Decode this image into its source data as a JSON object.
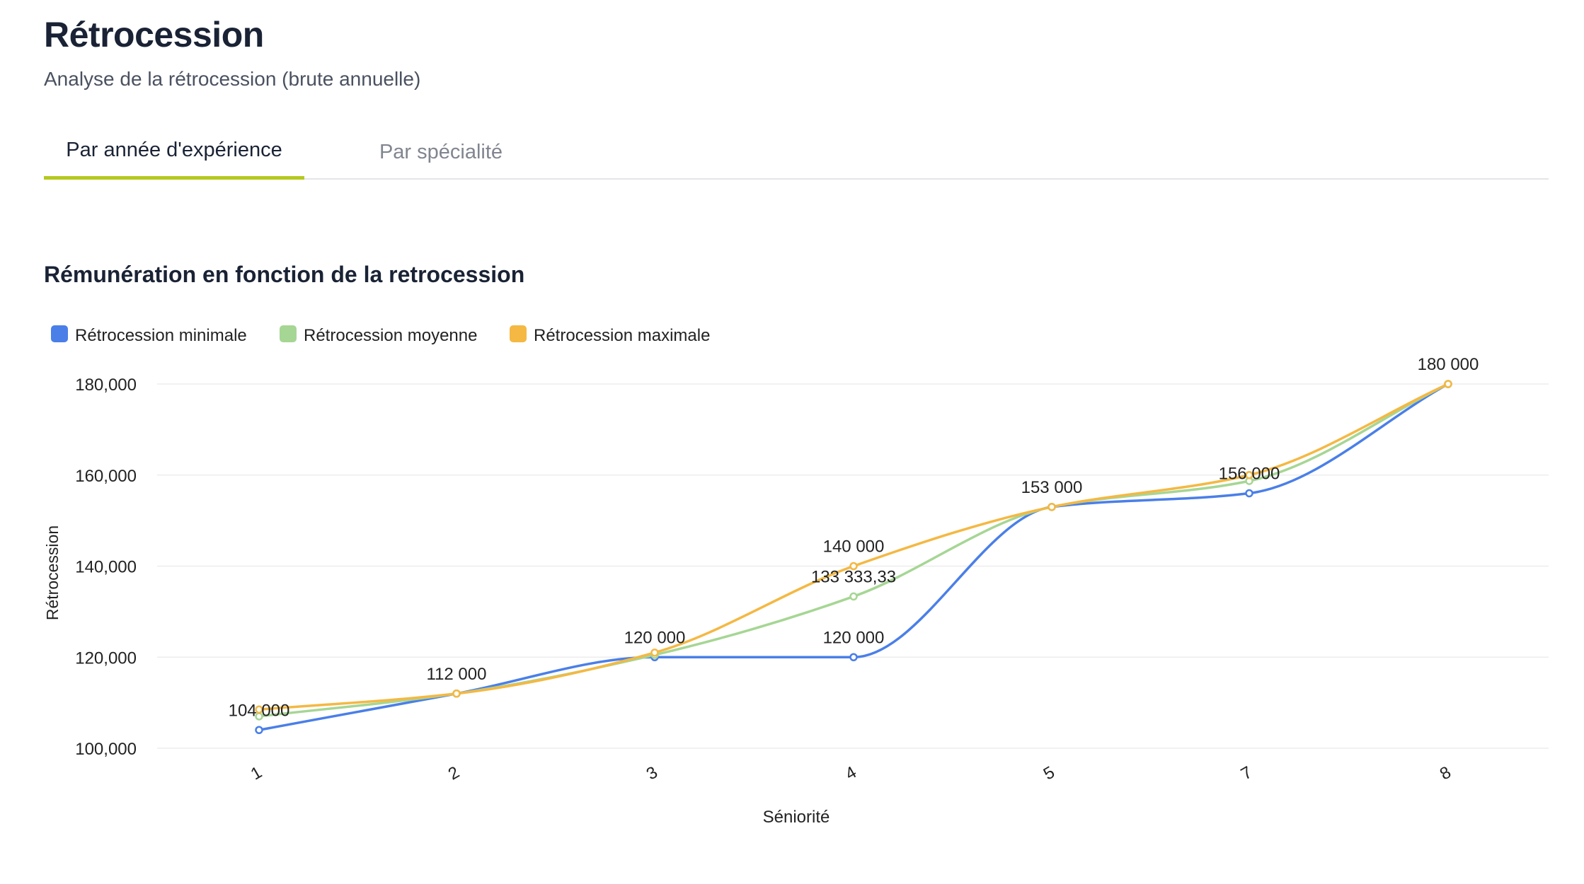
{
  "page": {
    "title": "Rétrocession",
    "subtitle": "Analyse de la rétrocession (brute annuelle)"
  },
  "tabs": [
    {
      "label": "Par année d'expérience",
      "active": true
    },
    {
      "label": "Par spécialité",
      "active": false
    }
  ],
  "colors": {
    "accent_tab": "#b5c91f",
    "min": "#4a7fe8",
    "avg": "#a6d694",
    "max": "#f4b843"
  },
  "chart_data": {
    "type": "line",
    "title": "Rémunération en fonction de la retrocession",
    "xlabel": "Séniorité",
    "ylabel": "Rétrocession",
    "categories": [
      "1",
      "2",
      "3",
      "4",
      "5",
      "7",
      "8"
    ],
    "ylim": [
      100000,
      180000
    ],
    "yticks": [
      100000,
      120000,
      140000,
      160000,
      180000
    ],
    "ytick_labels": [
      "100,000",
      "120,000",
      "140,000",
      "160,000",
      "180,000"
    ],
    "grid": true,
    "legend_position": "top-left",
    "series": [
      {
        "name": "Rétrocession minimale",
        "color": "#4a7fe8",
        "values": [
          104000,
          112000,
          120000,
          120000,
          153000,
          156000,
          180000
        ]
      },
      {
        "name": "Rétrocession moyenne",
        "color": "#a6d694",
        "values": [
          107000,
          112000,
          120500,
          133333.33,
          153000,
          158700,
          180000
        ]
      },
      {
        "name": "Rétrocession maximale",
        "color": "#f4b843",
        "values": [
          108500,
          112000,
          121000,
          140000,
          153000,
          160000,
          180000
        ]
      }
    ],
    "data_labels": [
      {
        "category": "1",
        "value": 104000,
        "text": "104 000"
      },
      {
        "category": "2",
        "value": 112000,
        "text": "112 000"
      },
      {
        "category": "3",
        "value": 120000,
        "text": "120 000"
      },
      {
        "category": "4",
        "value": 140000,
        "text": "140 000"
      },
      {
        "category": "4",
        "value": 133333.33,
        "text": "133 333,33"
      },
      {
        "category": "4",
        "value": 120000,
        "text": "120 000"
      },
      {
        "category": "5",
        "value": 153000,
        "text": "153 000"
      },
      {
        "category": "7",
        "value": 156000,
        "text": "156 000"
      },
      {
        "category": "8",
        "value": 180000,
        "text": "180 000"
      }
    ]
  }
}
